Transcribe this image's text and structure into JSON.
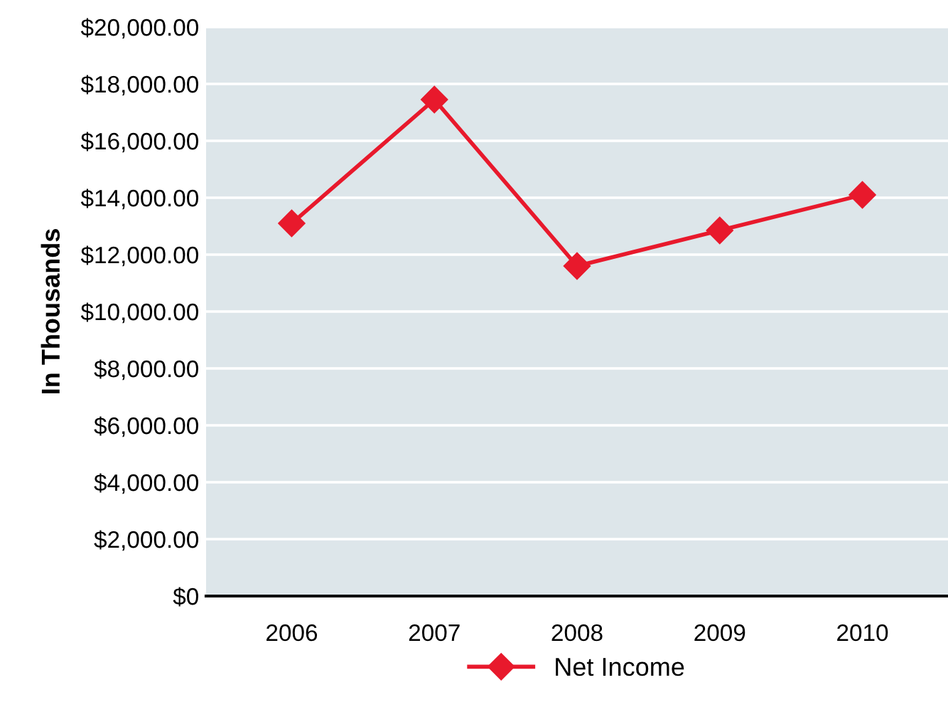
{
  "chart_data": {
    "type": "line",
    "ylabel": "In Thousands",
    "categories": [
      "2006",
      "2007",
      "2008",
      "2009",
      "2010"
    ],
    "series": [
      {
        "name": "Net Income",
        "color": "#e8192c",
        "values": [
          13100,
          17450,
          11600,
          12850,
          14100
        ]
      }
    ],
    "ylim": [
      0,
      20000
    ],
    "yticks": [
      {
        "value": 0,
        "label": "$0"
      },
      {
        "value": 2000,
        "label": "$2,000.00"
      },
      {
        "value": 4000,
        "label": "$4,000.00"
      },
      {
        "value": 6000,
        "label": "$6,000.00"
      },
      {
        "value": 8000,
        "label": "$8,000.00"
      },
      {
        "value": 10000,
        "label": "$10,000.00"
      },
      {
        "value": 12000,
        "label": "$12,000.00"
      },
      {
        "value": 14000,
        "label": "$14,000.00"
      },
      {
        "value": 16000,
        "label": "$16,000.00"
      },
      {
        "value": 18000,
        "label": "$18,000.00"
      },
      {
        "value": 20000,
        "label": "$20,000.00"
      }
    ],
    "grid": "y",
    "legend": "bottom",
    "marker": "diamond",
    "line_style": "solid"
  }
}
